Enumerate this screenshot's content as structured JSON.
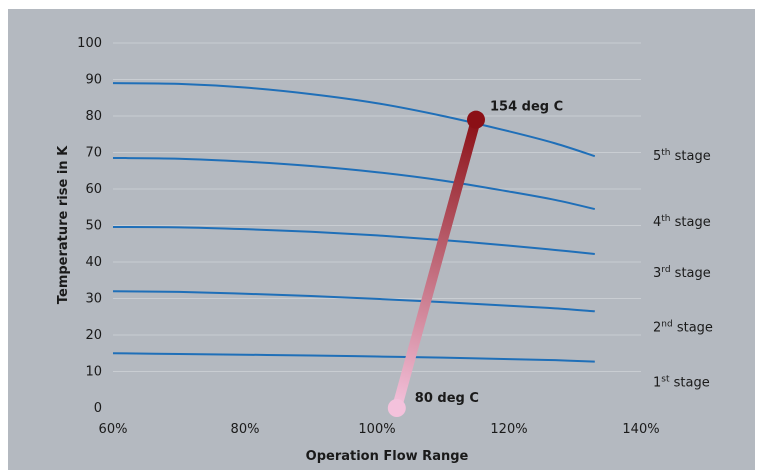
{
  "chart_data": {
    "type": "line",
    "title": "",
    "xlabel": "Operation Flow Range",
    "ylabel": "Temperature rise in K",
    "xlim": [
      60,
      140
    ],
    "ylim": [
      0,
      100
    ],
    "x_ticks": [
      60,
      80,
      100,
      120,
      140
    ],
    "x_tick_labels": [
      "60%",
      "80%",
      "100%",
      "120%",
      "140%"
    ],
    "y_ticks": [
      0,
      10,
      20,
      30,
      40,
      50,
      60,
      70,
      80,
      90,
      100
    ],
    "y_tick_labels": [
      "0",
      "10",
      "20",
      "30",
      "40",
      "50",
      "60",
      "70",
      "80",
      "90",
      "100"
    ],
    "grid": "horizontal",
    "series": [
      {
        "x": [
          60,
          70,
          80,
          90,
          100,
          110,
          120,
          127,
          133
        ],
        "y": [
          15,
          14.8,
          14.6,
          14.4,
          14.1,
          13.8,
          13.4,
          13.1,
          12.7
        ]
      },
      {
        "x": [
          60,
          70,
          80,
          90,
          100,
          110,
          120,
          127,
          133
        ],
        "y": [
          32,
          31.8,
          31.3,
          30.7,
          29.9,
          29.0,
          28.0,
          27.3,
          26.5
        ]
      },
      {
        "x": [
          60,
          70,
          80,
          90,
          100,
          110,
          120,
          127,
          133
        ],
        "y": [
          49.6,
          49.5,
          49.0,
          48.3,
          47.3,
          46.0,
          44.5,
          43.3,
          42.2
        ]
      },
      {
        "x": [
          60,
          70,
          80,
          90,
          100,
          110,
          120,
          127,
          133
        ],
        "y": [
          68.5,
          68.3,
          67.5,
          66.3,
          64.6,
          62.3,
          59.3,
          57.0,
          54.5
        ]
      },
      {
        "x": [
          60,
          70,
          80,
          90,
          100,
          110,
          120,
          127,
          133
        ],
        "y": [
          89,
          88.8,
          87.8,
          86.0,
          83.5,
          80.0,
          75.8,
          72.5,
          69.0
        ]
      }
    ],
    "stage_labels": [
      {
        "prefix": "1",
        "sup": "st",
        "suffix": " stage",
        "y": 7
      },
      {
        "prefix": "2",
        "sup": "nd",
        "suffix": " stage",
        "y": 22
      },
      {
        "prefix": "3",
        "sup": "rd",
        "suffix": " stage",
        "y": 37
      },
      {
        "prefix": "4",
        "sup": "th",
        "suffix": " stage",
        "y": 51
      },
      {
        "prefix": "5",
        "sup": "th",
        "suffix": " stage",
        "y": 69
      }
    ],
    "temperature_line": {
      "start": {
        "x": 103,
        "y": 0,
        "label": "80 deg C"
      },
      "end": {
        "x": 115,
        "y": 79,
        "label": "154 deg C"
      },
      "start_color": "#f4c2dc",
      "end_color": "#8b1016"
    },
    "colors": {
      "background": "#b4b9c0",
      "plot_background": "#b4b9c0",
      "grid": "#c9cdd2",
      "series": "#1f6fb8"
    }
  }
}
